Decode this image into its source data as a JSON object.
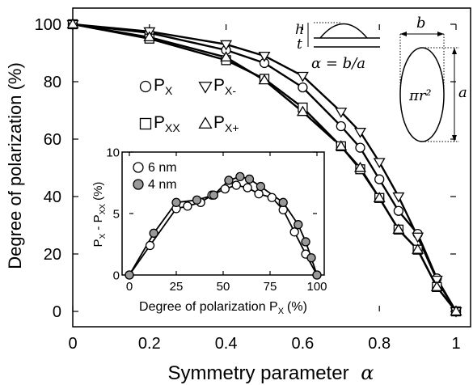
{
  "chart_data": [
    {
      "type": "line",
      "xlabel": "Symmetry parameter",
      "xlabel_symbol": "α",
      "ylabel": "Degree of polarization (%)",
      "xlim": [
        0,
        1
      ],
      "ylim": [
        0,
        100
      ],
      "xticks": [
        "0",
        "0.2",
        "0.4",
        "0.6",
        "0.8",
        "1"
      ],
      "yticks": [
        "0",
        "20",
        "40",
        "60",
        "80",
        "100"
      ],
      "grid": false,
      "legend": "top-left inside plot, 2 columns",
      "series": [
        {
          "name": "P",
          "name_sub": "X",
          "marker": "circle",
          "fill": "#ffffff",
          "x": [
            0,
            0.2,
            0.4,
            0.5,
            0.6,
            0.7,
            0.75,
            0.8,
            0.85,
            0.9,
            0.95,
            1.0
          ],
          "y": [
            100,
            97,
            91,
            86.5,
            78,
            64.5,
            57,
            46,
            35,
            27,
            11.5,
            0
          ]
        },
        {
          "name": "P",
          "name_sub": "XX",
          "marker": "square",
          "fill": "#ffffff",
          "x": [
            0,
            0.2,
            0.4,
            0.5,
            0.6,
            0.7,
            0.75,
            0.8,
            0.85,
            0.9,
            0.95,
            1.0
          ],
          "y": [
            100,
            95,
            87.5,
            81,
            71,
            57.5,
            49.5,
            39.5,
            28.5,
            21.5,
            8.5,
            0
          ]
        },
        {
          "name": "P",
          "name_sub": "X-",
          "marker": "triangle-down",
          "fill": "#ffffff",
          "x": [
            0,
            0.2,
            0.4,
            0.5,
            0.6,
            0.7,
            0.75,
            0.8,
            0.85,
            0.9,
            0.95,
            1.0
          ],
          "y": [
            100,
            97.5,
            93,
            89,
            82,
            69.5,
            62.5,
            52,
            40,
            26,
            11,
            0
          ]
        },
        {
          "name": "P",
          "name_sub": "X+",
          "marker": "triangle-up",
          "fill": "#ffffff",
          "x": [
            0,
            0.2,
            0.4,
            0.5,
            0.6,
            0.7,
            0.75,
            0.8,
            0.85,
            0.9,
            0.95,
            1.0
          ],
          "y": [
            100,
            95.5,
            88.5,
            80.5,
            69.5,
            57.5,
            50,
            39.5,
            28.5,
            21.5,
            8.5,
            0
          ]
        }
      ],
      "annotations": {
        "h_label": "h",
        "t_label": "t",
        "alpha_eq": "α = b/a",
        "b_label": "b",
        "a_label": "a",
        "area_label": "πr²"
      }
    },
    {
      "type": "line",
      "xlabel": "Degree of polarization P",
      "xlabel_sub": "X",
      "xlabel_unit": "(%)",
      "ylabel_parts": [
        "P",
        "X",
        " - P",
        "XX",
        " (%)"
      ],
      "xlim": [
        0,
        100
      ],
      "ylim": [
        0,
        10
      ],
      "xticks": [
        "0",
        "25",
        "50",
        "75",
        "100"
      ],
      "yticks": [
        "0",
        "5",
        "10"
      ],
      "grid": false,
      "legend": "top-left",
      "series": [
        {
          "name": "6 nm",
          "marker": "circle",
          "fill": "#ffffff",
          "x": [
            0,
            11,
            25,
            31,
            38,
            44,
            51,
            57,
            63,
            69,
            76,
            82,
            88,
            94,
            100
          ],
          "y": [
            0,
            2.4,
            5.4,
            5.6,
            5.9,
            6.5,
            7.0,
            7.3,
            7.1,
            6.6,
            6.3,
            5.3,
            3.5,
            1.7,
            0
          ]
        },
        {
          "name": "4 nm",
          "marker": "circle",
          "fill": "#999999",
          "x": [
            0,
            13,
            25,
            36,
            45,
            53,
            59,
            64,
            70,
            82,
            90,
            94,
            97,
            100
          ],
          "y": [
            0,
            3.4,
            5.9,
            6.1,
            6.5,
            7.7,
            8.0,
            7.8,
            7.2,
            5.9,
            4.1,
            2.7,
            1.4,
            0
          ]
        }
      ]
    }
  ]
}
